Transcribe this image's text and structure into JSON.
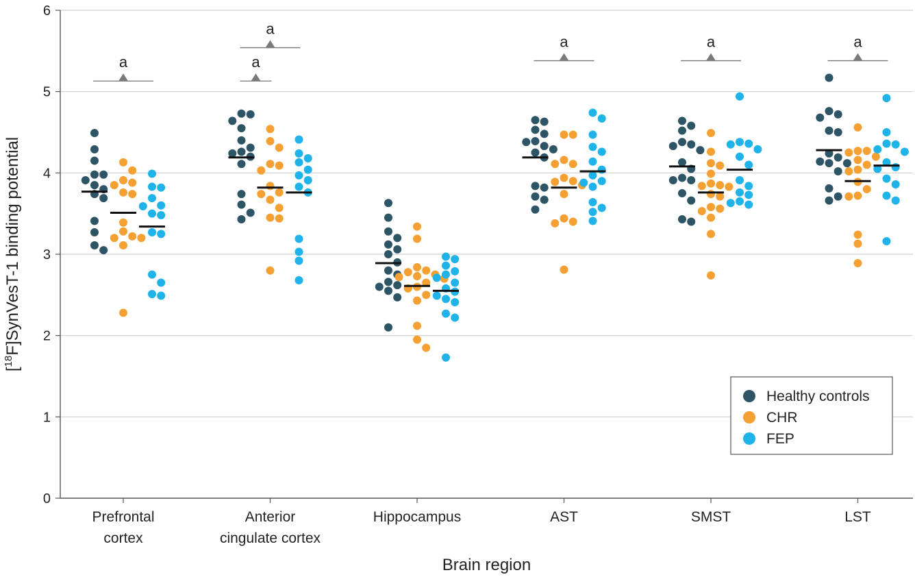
{
  "chart_data": {
    "type": "scatter",
    "subtype": "dot-strip",
    "xlabel": "Brain region",
    "ylabel_prefix": "[",
    "ylabel_sup": "18",
    "ylabel_main": "F]SynVesT-1 binding potential",
    "ylim": [
      0,
      6
    ],
    "yticks": [
      0,
      1,
      2,
      3,
      4,
      5,
      6
    ],
    "grid": true,
    "legend_position": "bottom-right",
    "series_colors": {
      "HC": "#2e5566",
      "CHR": "#f5a033",
      "FEP": "#1fb3ea"
    },
    "legend": [
      {
        "key": "HC",
        "label": "Healthy controls"
      },
      {
        "key": "CHR",
        "label": "CHR"
      },
      {
        "key": "FEP",
        "label": "FEP"
      }
    ],
    "categories": [
      {
        "label_lines": [
          "Prefrontal",
          "cortex"
        ],
        "HC": {
          "mean": 3.77,
          "values": [
            4.49,
            4.29,
            4.15,
            3.98,
            3.98,
            3.91,
            3.85,
            3.8,
            3.74,
            3.69,
            3.41,
            3.27,
            3.11,
            3.05
          ]
        },
        "CHR": {
          "mean": 3.51,
          "values": [
            4.13,
            4.03,
            3.91,
            3.88,
            3.85,
            3.76,
            3.74,
            3.39,
            3.28,
            3.22,
            3.2,
            3.2,
            3.11,
            2.28
          ]
        },
        "FEP": {
          "mean": 3.34,
          "values": [
            3.99,
            3.83,
            3.82,
            3.69,
            3.6,
            3.59,
            3.5,
            3.48,
            3.27,
            3.25,
            2.75,
            2.65,
            2.51,
            2.49
          ]
        },
        "sig": [
          {
            "label": "a",
            "level": 5.13,
            "from": "HC",
            "to": "FEP"
          }
        ]
      },
      {
        "label_lines": [
          "Anterior",
          "cingulate cortex"
        ],
        "HC": {
          "mean": 4.19,
          "values": [
            4.73,
            4.72,
            4.64,
            4.55,
            4.4,
            4.31,
            4.26,
            4.24,
            4.2,
            4.11,
            3.74,
            3.61,
            3.51,
            3.43
          ]
        },
        "CHR": {
          "mean": 3.82,
          "values": [
            4.54,
            4.39,
            4.31,
            4.11,
            4.09,
            4.03,
            3.84,
            3.76,
            3.74,
            3.67,
            3.57,
            3.45,
            3.44,
            2.8
          ]
        },
        "FEP": {
          "mean": 3.76,
          "values": [
            4.41,
            4.24,
            4.18,
            4.13,
            4.04,
            3.97,
            3.91,
            3.83,
            3.76,
            3.19,
            3.03,
            2.92,
            2.68
          ]
        },
        "sig": [
          {
            "label": "a",
            "level": 5.13,
            "from": "HC",
            "to": "CHR"
          },
          {
            "label": "a",
            "level": 5.54,
            "from": "HC",
            "to": "FEP"
          }
        ]
      },
      {
        "label_lines": [
          "Hippocampus"
        ],
        "HC": {
          "mean": 2.89,
          "values": [
            3.63,
            3.45,
            3.28,
            3.2,
            3.12,
            3.06,
            3.0,
            2.9,
            2.8,
            2.75,
            2.66,
            2.62,
            2.6,
            2.55,
            2.47,
            2.1
          ]
        },
        "CHR": {
          "mean": 2.61,
          "values": [
            3.34,
            3.19,
            2.84,
            2.8,
            2.78,
            2.75,
            2.73,
            2.72,
            2.7,
            2.65,
            2.6,
            2.58,
            2.5,
            2.43,
            2.12,
            1.95,
            1.85
          ]
        },
        "FEP": {
          "mean": 2.55,
          "values": [
            2.97,
            2.94,
            2.86,
            2.79,
            2.75,
            2.71,
            2.65,
            2.58,
            2.54,
            2.49,
            2.45,
            2.41,
            2.27,
            2.22,
            1.73
          ]
        },
        "sig": []
      },
      {
        "label_lines": [
          "AST"
        ],
        "HC": {
          "mean": 4.19,
          "values": [
            4.65,
            4.63,
            4.53,
            4.48,
            4.39,
            4.38,
            4.33,
            4.29,
            4.25,
            4.19,
            3.84,
            3.82,
            3.71,
            3.67,
            3.55
          ]
        },
        "CHR": {
          "mean": 3.82,
          "values": [
            4.47,
            4.47,
            4.16,
            4.11,
            4.11,
            3.94,
            3.9,
            3.89,
            3.85,
            3.74,
            3.44,
            3.4,
            3.38,
            2.81
          ]
        },
        "FEP": {
          "mean": 4.02,
          "values": [
            4.74,
            4.67,
            4.47,
            4.32,
            4.26,
            4.14,
            4.04,
            3.97,
            3.9,
            3.88,
            3.83,
            3.64,
            3.57,
            3.52,
            3.41
          ]
        },
        "sig": [
          {
            "label": "a",
            "level": 5.38,
            "from": "HC",
            "to": "FEP"
          }
        ]
      },
      {
        "label_lines": [
          "SMST"
        ],
        "HC": {
          "mean": 4.08,
          "values": [
            4.64,
            4.58,
            4.52,
            4.38,
            4.35,
            4.33,
            4.28,
            4.13,
            4.05,
            3.94,
            3.91,
            3.91,
            3.75,
            3.66,
            3.43,
            3.4
          ]
        },
        "CHR": {
          "mean": 3.76,
          "values": [
            4.49,
            4.26,
            4.12,
            4.09,
            3.99,
            3.87,
            3.85,
            3.84,
            3.83,
            3.74,
            3.71,
            3.58,
            3.56,
            3.53,
            3.45,
            3.25,
            2.74
          ]
        },
        "FEP": {
          "mean": 4.04,
          "values": [
            4.94,
            4.38,
            4.36,
            4.35,
            4.29,
            4.2,
            4.1,
            3.91,
            3.84,
            3.76,
            3.73,
            3.65,
            3.63,
            3.61
          ]
        },
        "sig": [
          {
            "label": "a",
            "level": 5.38,
            "from": "HC",
            "to": "FEP"
          }
        ]
      },
      {
        "label_lines": [
          "LST"
        ],
        "HC": {
          "mean": 4.28,
          "values": [
            5.17,
            4.76,
            4.72,
            4.68,
            4.52,
            4.5,
            4.24,
            4.19,
            4.14,
            4.12,
            4.12,
            4.02,
            3.81,
            3.71,
            3.66
          ]
        },
        "CHR": {
          "mean": 3.9,
          "values": [
            4.56,
            4.27,
            4.27,
            4.25,
            4.2,
            4.16,
            4.1,
            4.04,
            4.02,
            3.89,
            3.8,
            3.72,
            3.71,
            3.24,
            3.13,
            2.89
          ]
        },
        "FEP": {
          "mean": 4.09,
          "values": [
            4.92,
            4.5,
            4.36,
            4.35,
            4.29,
            4.26,
            4.13,
            4.07,
            4.05,
            3.93,
            3.86,
            3.72,
            3.66,
            3.16
          ]
        },
        "sig": [
          {
            "label": "a",
            "level": 5.38,
            "from": "HC",
            "to": "FEP"
          }
        ]
      }
    ]
  }
}
